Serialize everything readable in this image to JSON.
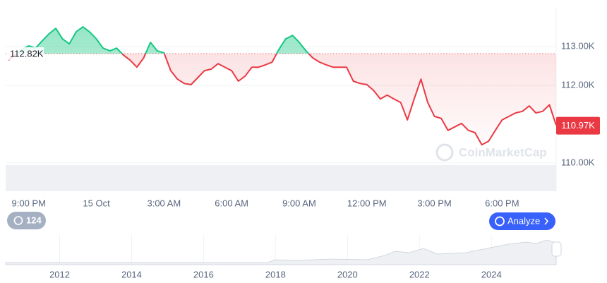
{
  "chart_data": {
    "type": "line",
    "categories": [
      null,
      null,
      null,
      "9:00 PM",
      null,
      null,
      null,
      null,
      null,
      null,
      null,
      null,
      null,
      "15 Oct",
      null,
      null,
      null,
      null,
      null,
      null,
      null,
      null,
      null,
      "3:00 AM",
      null,
      null,
      null,
      null,
      null,
      null,
      null,
      null,
      null,
      "6:00 AM",
      null,
      null,
      null,
      null,
      null,
      null,
      null,
      null,
      null,
      "9:00 AM",
      null,
      null,
      null,
      null,
      null,
      null,
      null,
      null,
      null,
      "12:00 PM",
      null,
      null,
      null,
      null,
      null,
      null,
      null,
      null,
      null,
      "3:00 PM",
      null,
      null,
      null,
      null,
      null,
      null,
      null,
      null,
      null,
      "6:00 PM",
      null,
      null,
      null,
      null,
      null,
      null,
      null,
      null
    ],
    "series": [
      {
        "values": [
          112650,
          112780,
          112930,
          113020,
          112960,
          113150,
          113330,
          113470,
          113200,
          113070,
          113380,
          113510,
          113380,
          113200,
          112960,
          112890,
          112960,
          112780,
          112650,
          112470,
          112710,
          113110,
          112890,
          112840,
          112380,
          112160,
          112050,
          112020,
          112200,
          112380,
          112420,
          112560,
          112470,
          112380,
          112110,
          112240,
          112470,
          112470,
          112530,
          112600,
          112930,
          113200,
          113290,
          113110,
          112890,
          112710,
          112600,
          112530,
          112470,
          112470,
          112470,
          112110,
          112050,
          112020,
          111870,
          111650,
          111750,
          111650,
          111560,
          111110,
          111650,
          112160,
          111560,
          111200,
          111150,
          110840,
          110930,
          111020,
          110840,
          110780,
          110470,
          110560,
          110840,
          111110,
          111200,
          111290,
          111330,
          111470,
          111290,
          111330,
          111500,
          110970
        ]
      }
    ],
    "colors": {
      "up": "#16c784",
      "down": "#ea3943"
    },
    "baseline": {
      "value": 112820,
      "label": "112.82K"
    },
    "last_price": {
      "value": 110970,
      "label": "110.97K"
    },
    "ylim": [
      109980,
      114020
    ],
    "yticks": [
      {
        "value": 110000,
        "label": "110.00K"
      },
      {
        "value": 112000,
        "label": "112.00K"
      },
      {
        "value": 113000,
        "label": "113.00K"
      }
    ],
    "grid": true,
    "watermark": "CoinMarketCap",
    "badge": "124",
    "button": "Analyze",
    "navigator": {
      "xlim": [
        2010.5,
        2025.8
      ],
      "xticks": [
        2012,
        2014,
        2016,
        2018,
        2020,
        2022,
        2024
      ]
    }
  }
}
